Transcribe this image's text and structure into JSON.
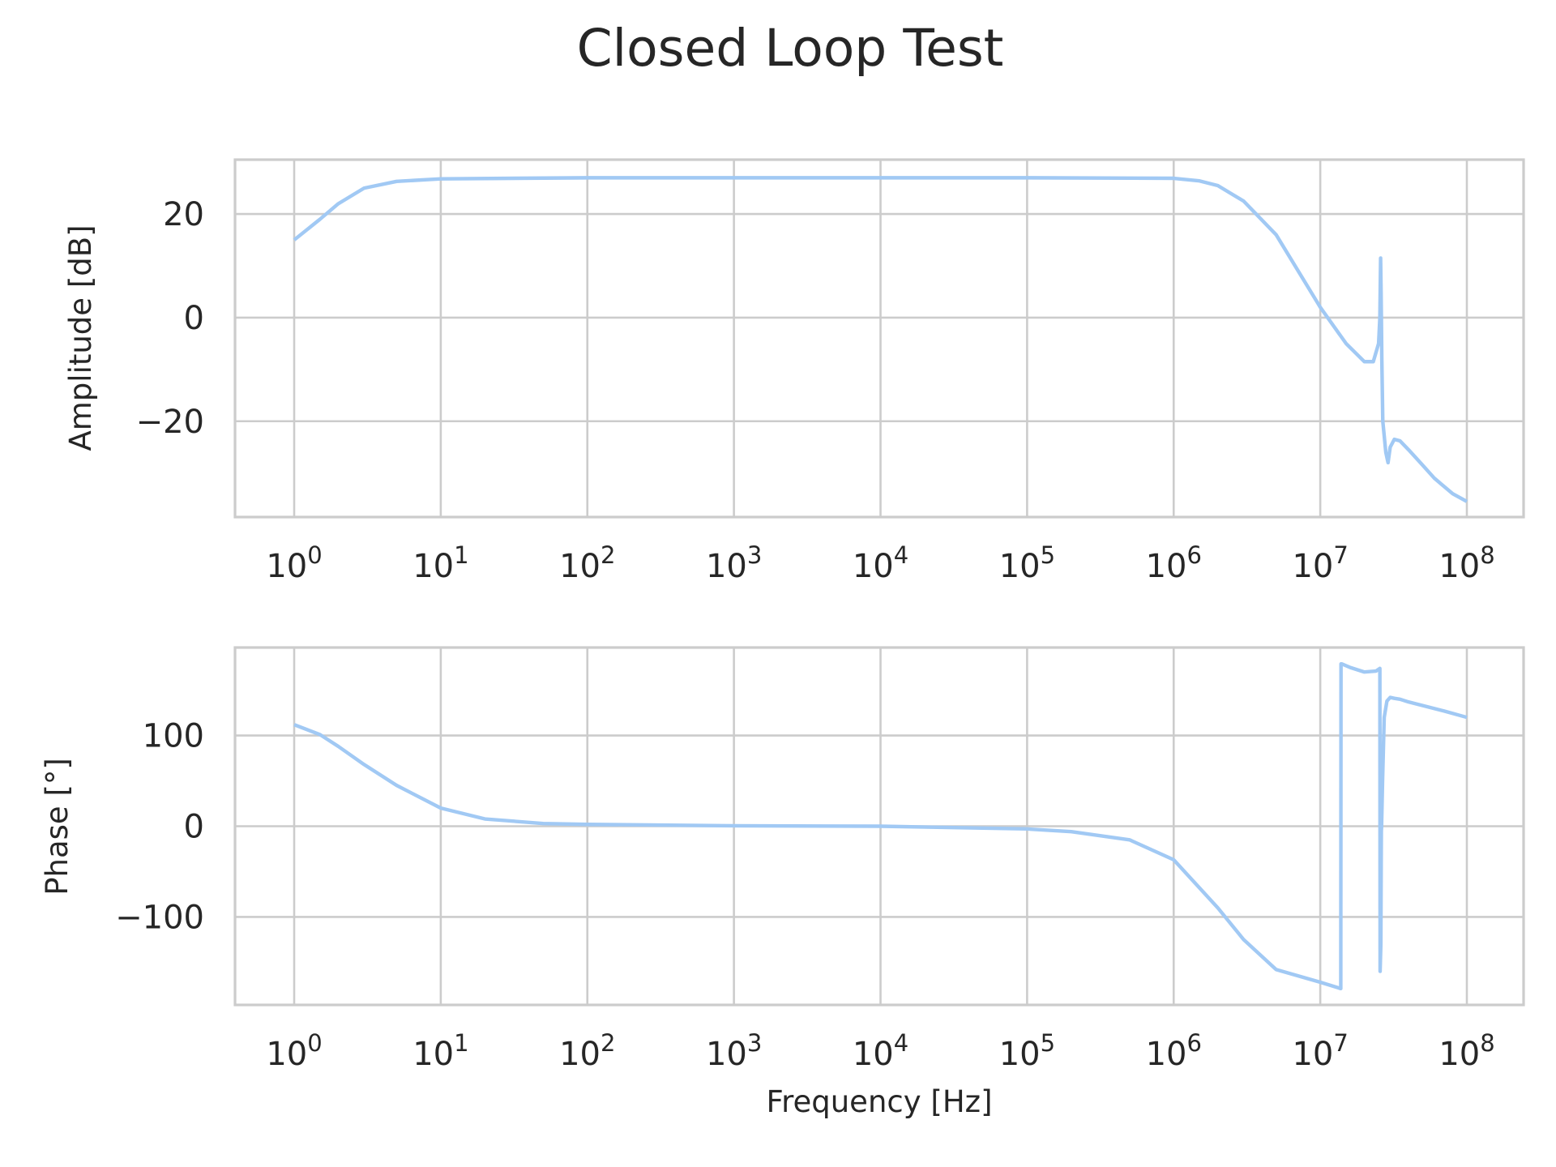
{
  "chart_data": {
    "type": "line",
    "title": "Closed Loop Test",
    "line_color": "#a1c9f4",
    "grid": true,
    "x_scale": "log",
    "x_range": [
      1,
      100000000
    ],
    "x_ticks": [
      {
        "value": 1,
        "base": "10",
        "exp": "0"
      },
      {
        "value": 10,
        "base": "10",
        "exp": "1"
      },
      {
        "value": 100,
        "base": "10",
        "exp": "2"
      },
      {
        "value": 1000,
        "base": "10",
        "exp": "3"
      },
      {
        "value": 10000,
        "base": "10",
        "exp": "4"
      },
      {
        "value": 100000,
        "base": "10",
        "exp": "5"
      },
      {
        "value": 1000000,
        "base": "10",
        "exp": "6"
      },
      {
        "value": 10000000,
        "base": "10",
        "exp": "7"
      },
      {
        "value": 100000000,
        "base": "10",
        "exp": "8"
      }
    ],
    "panels": [
      {
        "ylabel": "Amplitude [dB]",
        "xlabel": "",
        "ylim": [
          -38.5,
          30.5
        ],
        "y_ticks": [
          {
            "value": -20,
            "label": "−20"
          },
          {
            "value": 0,
            "label": "0"
          },
          {
            "value": 20,
            "label": "20"
          }
        ],
        "x": [
          1,
          1.5,
          2,
          3,
          5,
          10,
          100,
          1000,
          10000,
          100000,
          1000000,
          1500000,
          2000000,
          3000000,
          5000000,
          10000000,
          15000000,
          20000000,
          23000000,
          25000000,
          25500000,
          25800000,
          26000000,
          26300000,
          26700000,
          28000000,
          29000000,
          30000000,
          32000000,
          35000000,
          40000000,
          50000000,
          60000000,
          80000000,
          100000000
        ],
        "y": [
          15,
          19,
          22,
          25,
          26.3,
          26.8,
          27,
          27,
          27,
          27,
          26.9,
          26.4,
          25.5,
          22.5,
          16,
          2,
          -5,
          -8.5,
          -8.5,
          -5,
          0,
          11.5,
          5,
          -8,
          -20,
          -26,
          -28,
          -25,
          -23.5,
          -23.8,
          -25.5,
          -28.5,
          -31,
          -34,
          -35.5
        ]
      },
      {
        "ylabel": "Phase [°]",
        "xlabel": "Frequency [Hz]",
        "ylim": [
          -197,
          197
        ],
        "y_ticks": [
          {
            "value": -100,
            "label": "−100"
          },
          {
            "value": 0,
            "label": "0"
          },
          {
            "value": 100,
            "label": "100"
          }
        ],
        "x": [
          1,
          1.5,
          2,
          3,
          5,
          10,
          20,
          50,
          100,
          1000,
          10000,
          100000,
          200000,
          500000,
          1000000,
          2000000,
          3000000,
          5000000,
          10000000,
          13800000,
          13850000,
          14000000,
          16000000,
          20000000,
          24000000,
          25500000,
          25600000,
          25900000,
          26100000,
          26200000,
          26600000,
          27300000,
          28500000,
          30000000,
          32000000,
          35000000,
          40000000,
          50000000,
          70000000,
          100000000
        ],
        "y": [
          112,
          101,
          88,
          68,
          45,
          20,
          8,
          3,
          2,
          0.5,
          0,
          -3,
          -6,
          -15,
          -37,
          -90,
          -125,
          -158,
          -172,
          -179,
          179,
          179,
          175,
          170,
          171,
          174,
          -160,
          -130,
          -5,
          0,
          50,
          120,
          138,
          142,
          141,
          140,
          137,
          133,
          127,
          120
        ]
      }
    ]
  }
}
